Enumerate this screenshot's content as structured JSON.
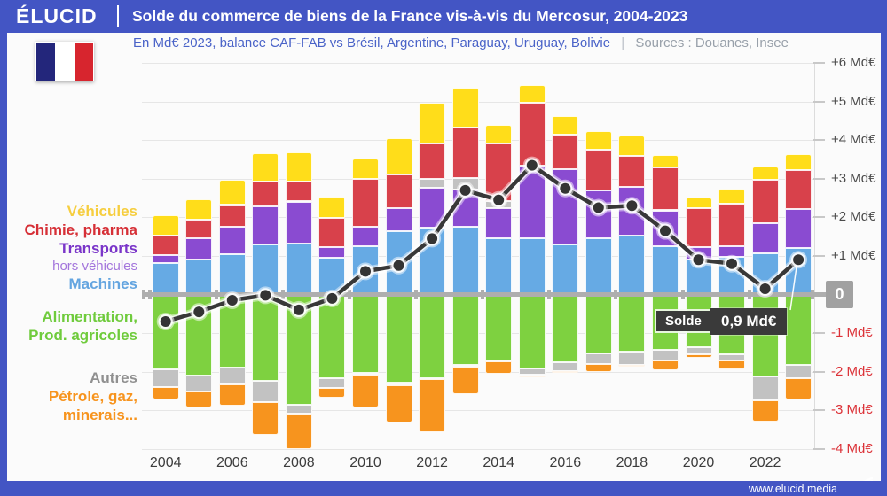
{
  "header": {
    "logo": "ÉLUCID",
    "title": "Solde du commerce de biens de la France vis-à-vis du Mercosur, 2004-2023"
  },
  "subtitle": {
    "main": "En Md€ 2023, balance CAF-FAB vs Brésil, Argentine, Paraguay, Uruguay, Bolivie",
    "separator": "|",
    "sources": "Sources : Douanes, Insee"
  },
  "annotation": {
    "label": "Solde",
    "value": "0,9 Md€"
  },
  "footer": {
    "url": "www.elucid.media"
  },
  "colors": {
    "frame_blue": "#4355C4",
    "subtitle_blue": "#4A63C8",
    "sources_gray": "#98A0AA",
    "axis_positive": "#4A4A4A",
    "axis_negative": "#DC3238",
    "zero_line": "#AEAEAE",
    "line": "#383838"
  },
  "legend": {
    "items": [
      {
        "label": "Véhicules",
        "color": "#F6CE3F",
        "small": false
      },
      {
        "label": "Chimie, pharma",
        "color": "#D62F36",
        "small": false
      },
      {
        "label": "Transports",
        "color": "#7A35C9",
        "small": false
      },
      {
        "label": "hors véhicules",
        "color": "#A375DC",
        "small": true
      },
      {
        "label": "Machines",
        "color": "#64A5E0",
        "small": false
      },
      {
        "label": "Alimentation,",
        "color": "#6FCB3C",
        "small": false
      },
      {
        "label": "Prod. agricoles",
        "color": "#6FCB3C",
        "small": false
      },
      {
        "label": "Autres",
        "color": "#909090",
        "small": false
      },
      {
        "label": "Pétrole, gaz,",
        "color": "#F7941E",
        "small": false
      },
      {
        "label": "minerais...",
        "color": "#F7941E",
        "small": false
      }
    ]
  },
  "chart_data": {
    "type": "stacked-bar+line",
    "title": "Solde du commerce de biens de la France vis-à-vis du Mercosur, 2004-2023",
    "unit": "Md€ 2023",
    "x": [
      2004,
      2005,
      2006,
      2007,
      2008,
      2009,
      2010,
      2011,
      2012,
      2013,
      2014,
      2015,
      2016,
      2017,
      2018,
      2019,
      2020,
      2021,
      2022,
      2023
    ],
    "x_tick_labels": [
      "2004",
      "2006",
      "2008",
      "2010",
      "2012",
      "2014",
      "2016",
      "2018",
      "2020",
      "2022"
    ],
    "ylim": [
      -4.35,
      6.15
    ],
    "grid": true,
    "y_axis": {
      "ticks": [
        {
          "v": 6,
          "label": "+6 Md€"
        },
        {
          "v": 5,
          "label": "+5 Md€"
        },
        {
          "v": 4,
          "label": "+4 Md€"
        },
        {
          "v": 3,
          "label": "+3 Md€"
        },
        {
          "v": 2,
          "label": "+2 Md€"
        },
        {
          "v": 1,
          "label": "+1 Md€"
        },
        {
          "v": 0,
          "label": "0"
        },
        {
          "v": -1,
          "label": "-1 Md€"
        },
        {
          "v": -2,
          "label": "-2 Md€"
        },
        {
          "v": -3,
          "label": "-3 Md€"
        },
        {
          "v": -4,
          "label": "-4 Md€"
        }
      ]
    },
    "stacks": {
      "positive": [
        {
          "key": "machines",
          "label": "Machines",
          "color": "#66AAE4",
          "values": [
            0.82,
            0.91,
            1.04,
            1.29,
            1.31,
            0.95,
            1.25,
            1.64,
            1.73,
            1.75,
            1.46,
            1.45,
            1.29,
            1.45,
            1.52,
            1.25,
            0.91,
            0.98,
            1.06,
            1.21
          ]
        },
        {
          "key": "transports",
          "label": "Transports hors véhicules",
          "color": "#8A4BD1",
          "values": [
            0.21,
            0.55,
            0.71,
            1.0,
            1.1,
            0.28,
            0.5,
            0.59,
            1.04,
            0.97,
            0.78,
            1.9,
            1.95,
            1.24,
            1.26,
            0.93,
            0.31,
            0.27,
            0.79,
            1.01
          ]
        },
        {
          "key": "autres_pos",
          "label": "Autres",
          "color": "#C2C2C2",
          "values": [
            0,
            0,
            0,
            0,
            0,
            0,
            0,
            0,
            0.22,
            0.3,
            0.18,
            0,
            0,
            0,
            0,
            0,
            0,
            0,
            0,
            0
          ]
        },
        {
          "key": "chimie",
          "label": "Chimie, pharma",
          "color": "#D8414B",
          "values": [
            0.5,
            0.48,
            0.57,
            0.64,
            0.52,
            0.75,
            1.25,
            0.89,
            0.93,
            1.31,
            1.5,
            1.63,
            0.9,
            1.06,
            0.82,
            1.11,
            1.02,
            1.1,
            1.12,
            1.0
          ]
        },
        {
          "key": "vehicules",
          "label": "Véhicules",
          "color": "#FFDD1A",
          "values": [
            0.52,
            0.52,
            0.66,
            0.73,
            0.75,
            0.56,
            0.52,
            0.94,
            1.05,
            1.03,
            0.48,
            0.45,
            0.49,
            0.49,
            0.52,
            0.33,
            0.28,
            0.39,
            0.36,
            0.42
          ]
        }
      ],
      "negative": [
        {
          "key": "alimentation",
          "label": "Alimentation, Prod. agricoles",
          "color": "#7ED140",
          "values": [
            -1.94,
            -2.11,
            -1.9,
            -2.23,
            -2.85,
            -2.18,
            -2.03,
            -2.29,
            -2.17,
            -1.82,
            -1.71,
            -1.92,
            -1.75,
            -1.52,
            -1.49,
            -1.44,
            -1.36,
            -1.55,
            -2.13,
            -1.82
          ]
        },
        {
          "key": "autres_neg",
          "label": "Autres",
          "color": "#C2C2C2",
          "values": [
            -0.45,
            -0.41,
            -0.42,
            -0.56,
            -0.24,
            -0.24,
            -0.05,
            -0.07,
            -0.03,
            -0.04,
            -0.03,
            -0.17,
            -0.23,
            -0.28,
            -0.33,
            -0.27,
            -0.19,
            -0.15,
            -0.62,
            -0.35
          ]
        },
        {
          "key": "petrole",
          "label": "Pétrole, gaz, minerais...",
          "color": "#F7941E",
          "values": [
            -0.34,
            -0.42,
            -0.55,
            -0.84,
            -0.91,
            -0.25,
            -0.84,
            -0.97,
            -1.37,
            -0.73,
            -0.31,
            -0.04,
            -0.05,
            -0.2,
            -0.05,
            -0.25,
            -0.08,
            -0.25,
            -0.54,
            -0.54
          ]
        }
      ]
    },
    "line": {
      "label": "Solde",
      "color": "#383838",
      "end_value_label": "0,9 Md€",
      "values": [
        -0.7,
        -0.45,
        -0.15,
        -0.02,
        -0.4,
        -0.1,
        0.6,
        0.75,
        1.45,
        2.7,
        2.45,
        3.35,
        2.75,
        2.25,
        2.3,
        1.65,
        0.9,
        0.8,
        0.15,
        0.9
      ]
    },
    "legend_position": "left"
  }
}
